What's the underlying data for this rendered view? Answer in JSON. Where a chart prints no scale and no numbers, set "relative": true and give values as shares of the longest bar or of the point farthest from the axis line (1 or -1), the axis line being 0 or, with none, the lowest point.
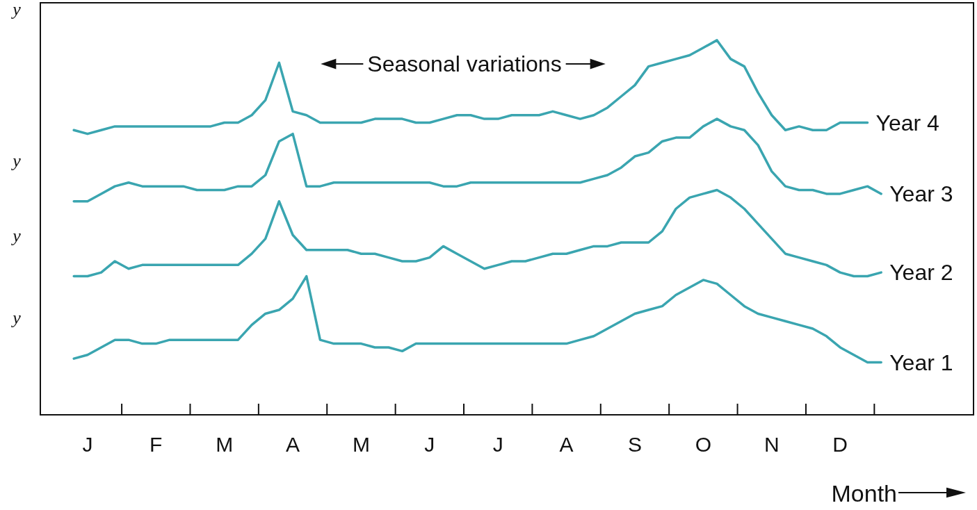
{
  "chart_data": {
    "type": "line",
    "relative": true,
    "xlabel": "Month",
    "categories": [
      null,
      null,
      "J",
      null,
      null,
      null,
      null,
      "F",
      null,
      null,
      null,
      null,
      "M",
      null,
      null,
      null,
      null,
      "A",
      null,
      null,
      null,
      null,
      "M",
      null,
      null,
      null,
      null,
      "J",
      null,
      null,
      null,
      null,
      "J",
      null,
      null,
      null,
      null,
      "A",
      null,
      null,
      null,
      null,
      "S",
      null,
      null,
      null,
      null,
      "O",
      null,
      null,
      null,
      null,
      "N",
      null,
      null,
      null,
      null,
      "D",
      null,
      null,
      null
    ],
    "grid": false,
    "marker": "none",
    "line_style": "solid",
    "annotations": [
      "Seasonal variations",
      "y",
      "y",
      "y",
      "y"
    ],
    "series": [
      {
        "name": "Year 4",
        "color": "#3aa5b0",
        "values": [
          null,
          0.76,
          0.75,
          0.76,
          0.77,
          0.77,
          0.77,
          0.77,
          0.77,
          0.77,
          0.77,
          0.77,
          0.78,
          0.78,
          0.8,
          0.84,
          0.94,
          0.81,
          0.8,
          0.78,
          0.78,
          0.78,
          0.78,
          0.79,
          0.79,
          0.79,
          0.78,
          0.78,
          0.79,
          0.8,
          0.8,
          0.79,
          0.79,
          0.8,
          0.8,
          0.8,
          0.81,
          0.8,
          0.79,
          0.8,
          0.82,
          0.85,
          0.88,
          0.93,
          0.94,
          0.95,
          0.96,
          0.98,
          1,
          0.95,
          0.93,
          0.86,
          0.8,
          0.76,
          0.77,
          0.76,
          0.76,
          0.78,
          0.78,
          0.78,
          null
        ]
      },
      {
        "name": "Year 3",
        "color": "#3aa5b0",
        "values": [
          null,
          0.57,
          0.57,
          0.59,
          0.61,
          0.62,
          0.61,
          0.61,
          0.61,
          0.61,
          0.6,
          0.6,
          0.6,
          0.61,
          0.61,
          0.64,
          0.73,
          0.75,
          0.61,
          0.61,
          0.62,
          0.62,
          0.62,
          0.62,
          0.62,
          0.62,
          0.62,
          0.62,
          0.61,
          0.61,
          0.62,
          0.62,
          0.62,
          0.62,
          0.62,
          0.62,
          0.62,
          0.62,
          0.62,
          0.63,
          0.64,
          0.66,
          0.69,
          0.7,
          0.73,
          0.74,
          0.74,
          0.77,
          0.79,
          0.77,
          0.76,
          0.72,
          0.65,
          0.61,
          0.6,
          0.6,
          0.59,
          0.59,
          0.6,
          0.61,
          0.59
        ]
      },
      {
        "name": "Year 2",
        "color": "#3aa5b0",
        "values": [
          null,
          0.37,
          0.37,
          0.38,
          0.41,
          0.39,
          0.4,
          0.4,
          0.4,
          0.4,
          0.4,
          0.4,
          0.4,
          0.4,
          0.43,
          0.47,
          0.57,
          0.48,
          0.44,
          0.44,
          0.44,
          0.44,
          0.43,
          0.43,
          0.42,
          0.41,
          0.41,
          0.42,
          0.45,
          0.43,
          0.41,
          0.39,
          0.4,
          0.41,
          0.41,
          0.42,
          0.43,
          0.43,
          0.44,
          0.45,
          0.45,
          0.46,
          0.46,
          0.46,
          0.49,
          0.55,
          0.58,
          0.59,
          0.6,
          0.58,
          0.55,
          0.51,
          0.47,
          0.43,
          0.42,
          0.41,
          0.4,
          0.38,
          0.37,
          0.37,
          0.38
        ]
      },
      {
        "name": "Year 1",
        "color": "#3aa5b0",
        "values": [
          null,
          0.15,
          0.16,
          0.18,
          0.2,
          0.2,
          0.19,
          0.19,
          0.2,
          0.2,
          0.2,
          0.2,
          0.2,
          0.2,
          0.24,
          0.27,
          0.28,
          0.31,
          0.37,
          0.2,
          0.19,
          0.19,
          0.19,
          0.18,
          0.18,
          0.17,
          0.19,
          0.19,
          0.19,
          0.19,
          0.19,
          0.19,
          0.19,
          0.19,
          0.19,
          0.19,
          0.19,
          0.19,
          0.2,
          0.21,
          0.23,
          0.25,
          0.27,
          0.28,
          0.29,
          0.32,
          0.34,
          0.36,
          0.35,
          0.32,
          0.29,
          0.27,
          0.26,
          0.25,
          0.24,
          0.23,
          0.21,
          0.18,
          0.16,
          0.14,
          0.14
        ]
      }
    ]
  }
}
